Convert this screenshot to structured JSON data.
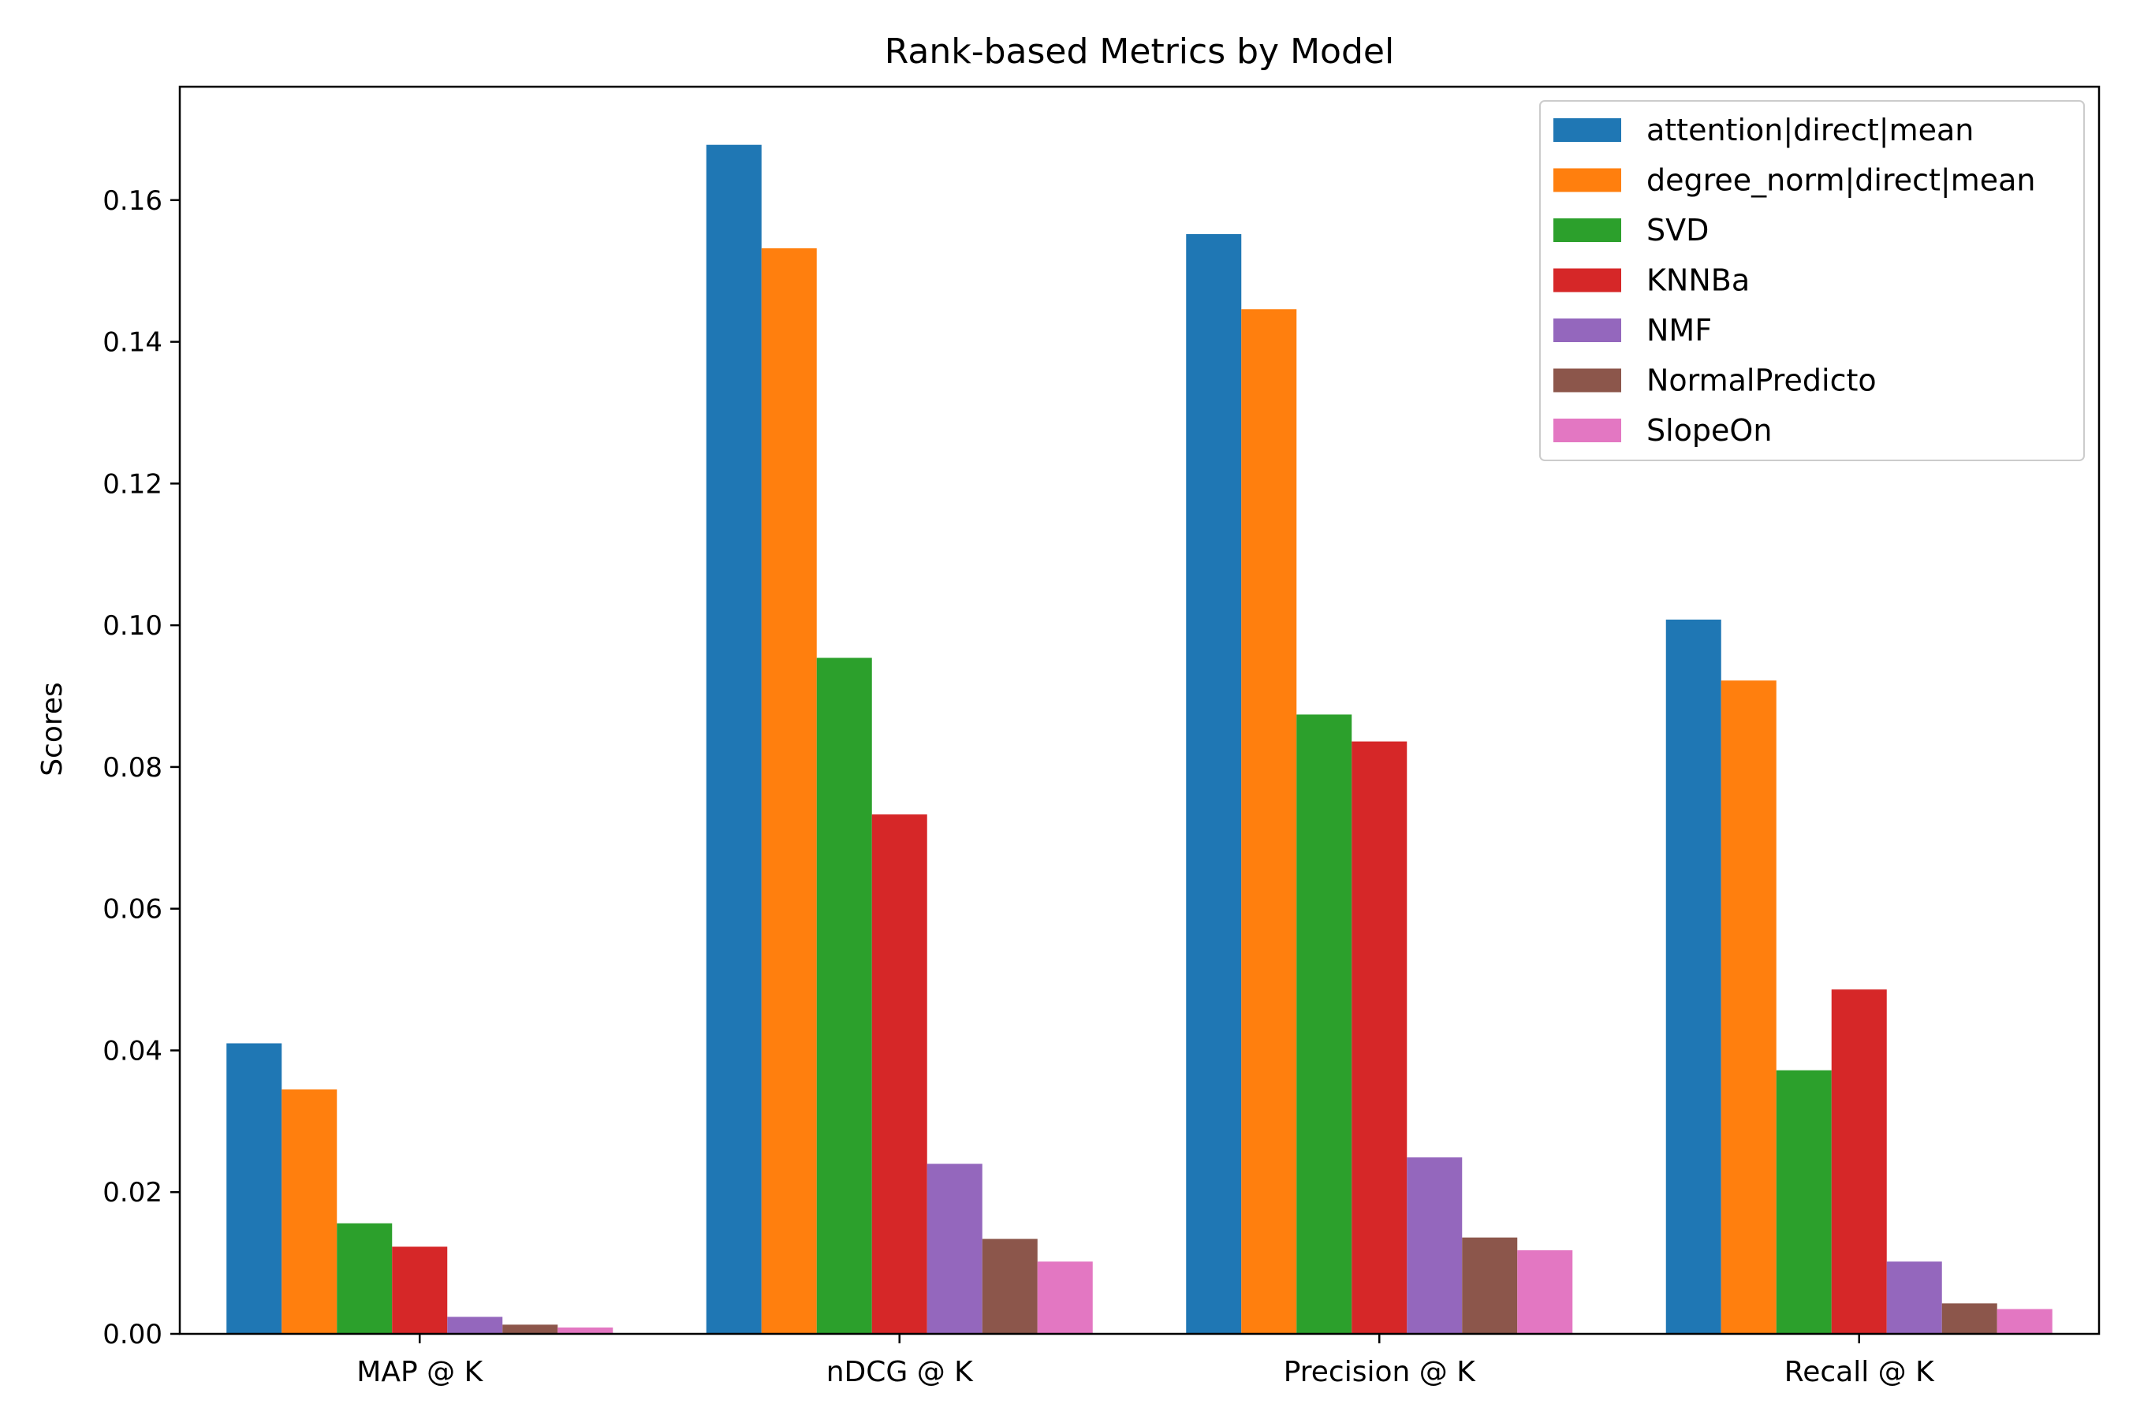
{
  "chart_data": {
    "type": "bar",
    "title": "Rank-based Metrics by Model",
    "xlabel": "",
    "ylabel": "Scores",
    "categories": [
      "MAP @ K",
      "nDCG @ K",
      "Precision @ K",
      "Recall @ K"
    ],
    "ylim": [
      0,
      0.176
    ],
    "yticks": [
      0.0,
      0.02,
      0.04,
      0.06,
      0.08,
      0.1,
      0.12,
      0.14,
      0.16
    ],
    "ytick_labels": [
      "0.00",
      "0.02",
      "0.04",
      "0.06",
      "0.08",
      "0.10",
      "0.12",
      "0.14",
      "0.16"
    ],
    "grid": false,
    "legend_position": "top-right",
    "series": [
      {
        "name": "attention|direct|mean",
        "color": "#1f77b4",
        "values": [
          0.041,
          0.1678,
          0.1552,
          0.1008
        ]
      },
      {
        "name": "degree_norm|direct|mean",
        "color": "#ff7f0e",
        "values": [
          0.0345,
          0.1532,
          0.1446,
          0.0922
        ]
      },
      {
        "name": "SVD",
        "color": "#2ca02c",
        "values": [
          0.0156,
          0.0954,
          0.0874,
          0.0372
        ]
      },
      {
        "name": "KNNBa",
        "color": "#d62728",
        "values": [
          0.0123,
          0.0733,
          0.0836,
          0.0486
        ]
      },
      {
        "name": "NMF",
        "color": "#9467bd",
        "values": [
          0.0024,
          0.024,
          0.0249,
          0.0102
        ]
      },
      {
        "name": "NormalPredicto",
        "color": "#8c564b",
        "values": [
          0.0013,
          0.0134,
          0.0136,
          0.0043
        ]
      },
      {
        "name": "SlopeOn",
        "color": "#e377c2",
        "values": [
          0.0009,
          0.0102,
          0.0118,
          0.0035
        ]
      }
    ]
  }
}
